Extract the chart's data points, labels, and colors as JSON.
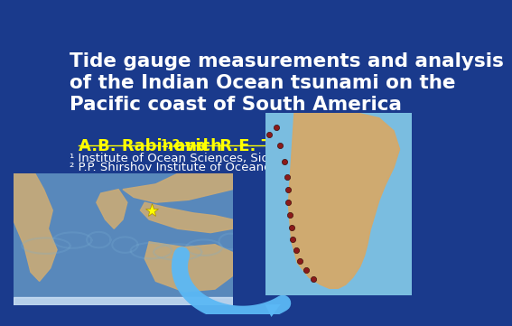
{
  "bg_color": "#1a3a8c",
  "title_line1": "Tide gauge measurements and analysis",
  "title_line2": "of the Indian Ocean tsunami on the",
  "title_line3": "Pacific coast of South America",
  "title_color": "#ffffff",
  "title_fontsize": 15.5,
  "author_color": "#ffff00",
  "author_fontsize": 13,
  "affil1": "¹ Institute of Ocean Sciences, Sidney, B.C. Canada",
  "affil2": "² P.P. Shirshov Institute of Oceanology, Moscow, Russia",
  "affil_color": "#ffffff",
  "affil_fontsize": 9.5,
  "arrow_color": "#5bb8f5",
  "map_dots_color": "#8B1a1a",
  "star_color": "#ffff00",
  "ocean_color": "#5888bb",
  "land_color": "#c8aa78",
  "sa_land_color": "#d4a96a",
  "sa_ocean_color": "#7abde0"
}
